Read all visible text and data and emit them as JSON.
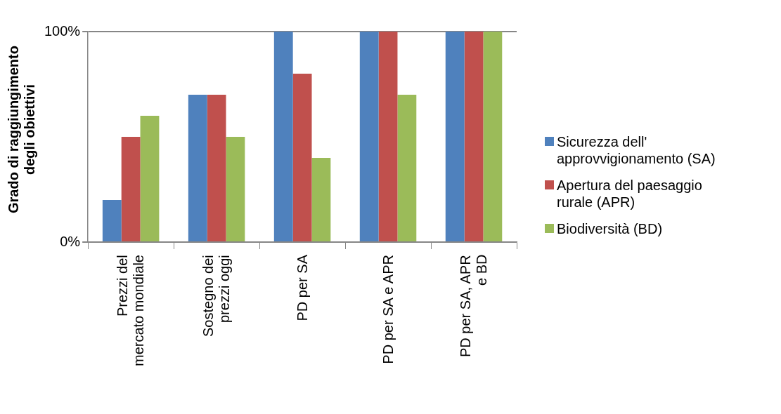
{
  "chart_data": {
    "type": "bar",
    "ylabel": "Grado di raggiungimento degli obiettivi",
    "categories": [
      "Prezzi del mercato mondiale",
      "Sostegno dei prezzi oggi",
      "PD per SA",
      "PD per SA e APR",
      "PD per SA, APR e BD"
    ],
    "series": [
      {
        "name": "Sicurezza dell' approvvigionamento (SA)",
        "color": "#4f81bd",
        "values": [
          20,
          70,
          100,
          100,
          100
        ]
      },
      {
        "name": "Apertura del paesaggio rurale (APR)",
        "color": "#c0504d",
        "values": [
          50,
          70,
          80,
          100,
          100
        ]
      },
      {
        "name": "Biodiversità (BD)",
        "color": "#9bbb59",
        "values": [
          60,
          50,
          40,
          70,
          100
        ]
      }
    ],
    "ylim": [
      0,
      100
    ],
    "yticks": [
      {
        "value": 0,
        "label": "0%"
      },
      {
        "value": 100,
        "label": "100%"
      }
    ],
    "grid": "y",
    "legend": "right"
  }
}
